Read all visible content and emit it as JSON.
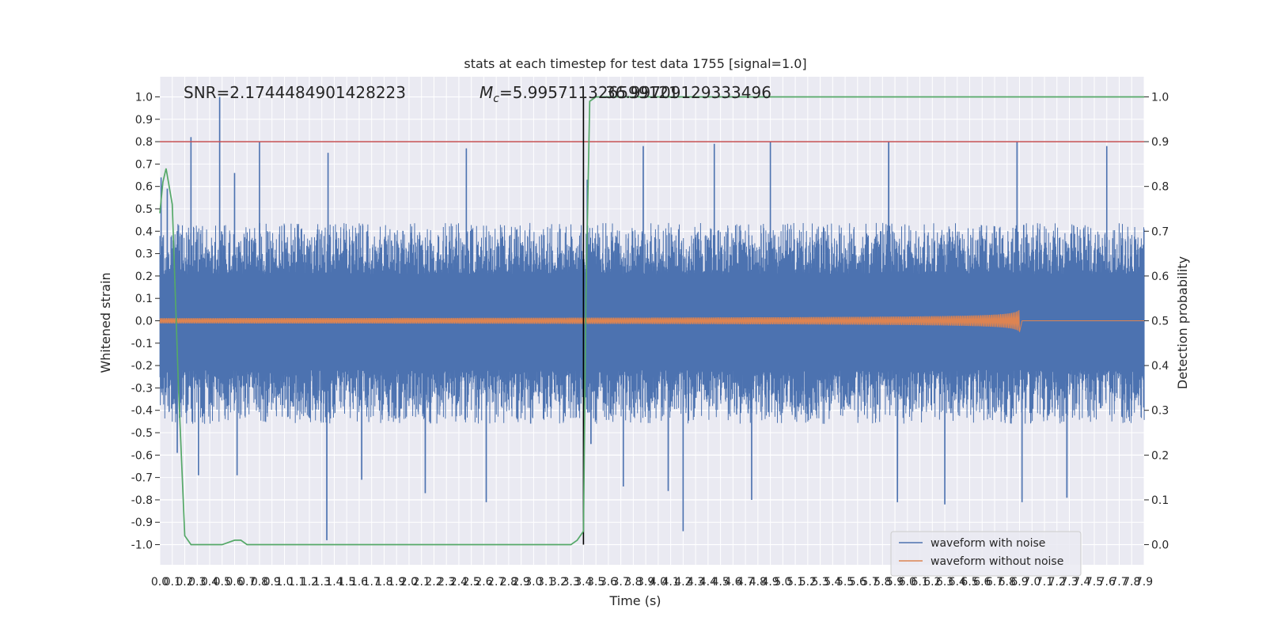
{
  "chart_data": {
    "type": "line",
    "title": "stats at each timestep for test data 1755 [signal=1.0]",
    "xlabel": "Time (s)",
    "ylabel_left": "Whitened strain",
    "ylabel_right": "Detection probability",
    "annotations": {
      "snr": "SNR=2.1744484901428223",
      "mc_prefix": "M",
      "mc_subscript": "c",
      "mc_value": "=5.995711326599121",
      "overlap": "36.99709129333496"
    },
    "xlim": [
      0.0,
      7.9
    ],
    "ylim_left": [
      -1.09,
      1.09
    ],
    "ylim_right": [
      -0.045,
      1.045
    ],
    "x_ticks": [
      0.0,
      0.1,
      0.2,
      0.3,
      0.4,
      0.5,
      0.6,
      0.7,
      0.8,
      0.9,
      1.0,
      1.1,
      1.2,
      1.3,
      1.4,
      1.5,
      1.6,
      1.7,
      1.8,
      1.9,
      2.0,
      2.1,
      2.2,
      2.3,
      2.4,
      2.5,
      2.6,
      2.7,
      2.8,
      2.9,
      3.0,
      3.1,
      3.2,
      3.3,
      3.4,
      3.5,
      3.6,
      3.7,
      3.8,
      3.9,
      4.0,
      4.1,
      4.2,
      4.3,
      4.4,
      4.5,
      4.6,
      4.7,
      4.8,
      4.9,
      5.0,
      5.1,
      5.2,
      5.3,
      5.4,
      5.5,
      5.6,
      5.7,
      5.8,
      5.9,
      6.0,
      6.1,
      6.2,
      6.3,
      6.4,
      6.5,
      6.6,
      6.7,
      6.8,
      6.9,
      7.0,
      7.1,
      7.2,
      7.3,
      7.4,
      7.5,
      7.6,
      7.7,
      7.8,
      7.9
    ],
    "y_ticks_left": [
      -1.0,
      -0.9,
      -0.8,
      -0.7,
      -0.6,
      -0.5,
      -0.4,
      -0.3,
      -0.2,
      -0.1,
      0.0,
      0.1,
      0.2,
      0.3,
      0.4,
      0.5,
      0.6,
      0.7,
      0.8,
      0.9,
      1.0
    ],
    "y_ticks_right": [
      0.0,
      0.1,
      0.2,
      0.3,
      0.4,
      0.5,
      0.6,
      0.7,
      0.8,
      0.9,
      1.0
    ],
    "threshold": {
      "axis": "right",
      "value": 0.9,
      "color": "#c44e52"
    },
    "marker_time": 3.4,
    "series": [
      {
        "name": "waveform with noise",
        "axis": "left",
        "color": "#4c72b0",
        "kind": "dense-noise",
        "sample_rate": 2048,
        "envelope": {
          "upper_typical": 0.38,
          "lower_typical": -0.4
        },
        "peaks": [
          [
            0.01,
            0.64
          ],
          [
            0.06,
            0.59
          ],
          [
            0.14,
            -0.59
          ],
          [
            0.25,
            0.82
          ],
          [
            0.31,
            -0.69
          ],
          [
            0.48,
            1.0
          ],
          [
            0.6,
            0.66
          ],
          [
            0.62,
            -0.69
          ],
          [
            0.8,
            0.8
          ],
          [
            1.34,
            -0.98
          ],
          [
            1.35,
            0.75
          ],
          [
            1.62,
            -0.71
          ],
          [
            2.13,
            -0.77
          ],
          [
            2.46,
            0.77
          ],
          [
            2.62,
            -0.81
          ],
          [
            3.43,
            0.63
          ],
          [
            3.46,
            -0.55
          ],
          [
            3.72,
            -0.74
          ],
          [
            3.88,
            0.78
          ],
          [
            4.08,
            -0.76
          ],
          [
            4.2,
            -0.94
          ],
          [
            4.45,
            0.79
          ],
          [
            4.75,
            -0.8
          ],
          [
            4.9,
            0.8
          ],
          [
            5.85,
            0.8
          ],
          [
            5.92,
            -0.81
          ],
          [
            6.3,
            -0.82
          ],
          [
            6.88,
            0.8
          ],
          [
            6.92,
            -0.81
          ],
          [
            7.28,
            -0.79
          ],
          [
            7.6,
            0.78
          ]
        ]
      },
      {
        "name": "waveform without noise",
        "axis": "left",
        "color": "#dd8452",
        "kind": "chirp",
        "merger_time": 6.9,
        "peak_amplitude": 0.05
      },
      {
        "name": "",
        "axis": "right",
        "color": "#55a868",
        "x": [
          0.0,
          0.025,
          0.05,
          0.1,
          0.15,
          0.2,
          0.25,
          0.3,
          0.35,
          0.4,
          0.5,
          0.6,
          0.65,
          0.7,
          0.75,
          0.8,
          1.0,
          1.5,
          2.0,
          2.5,
          3.0,
          3.3,
          3.35,
          3.4,
          3.42,
          3.45,
          3.5,
          4.0,
          5.0,
          6.0,
          7.0,
          7.9
        ],
        "y": [
          0.74,
          0.81,
          0.84,
          0.76,
          0.35,
          0.02,
          0.0,
          0.0,
          0.0,
          0.0,
          0.0,
          0.01,
          0.01,
          0.0,
          0.0,
          0.0,
          0.0,
          0.0,
          0.0,
          0.0,
          0.0,
          0.0,
          0.01,
          0.03,
          0.55,
          0.99,
          1.0,
          1.0,
          1.0,
          1.0,
          1.0,
          1.0
        ]
      }
    ],
    "legend_position": "lower-right",
    "grid": true
  },
  "colors": {
    "axes_bg": "#eaeaf2",
    "grid": "#ffffff",
    "text": "#262626",
    "marker": "#000000"
  }
}
